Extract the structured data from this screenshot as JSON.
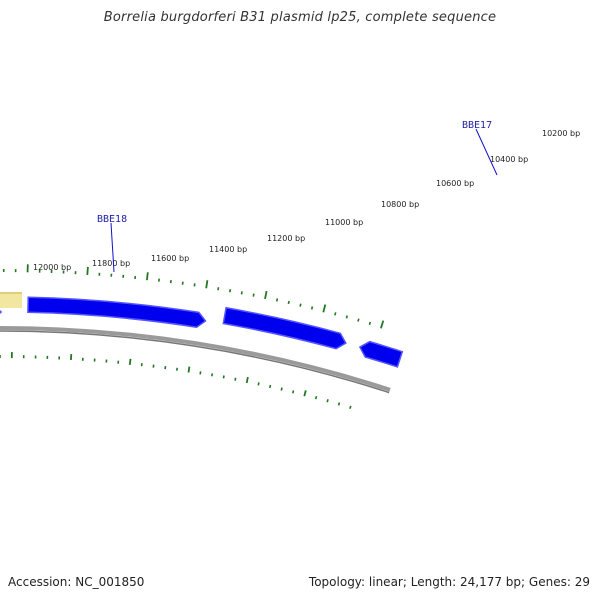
{
  "title": "Borrelia burgdorferi B31 plasmid lp25, complete sequence",
  "footer": {
    "accession_label": "Accession:",
    "accession": "NC_001850",
    "topology_label": "Topology:",
    "topology": "linear",
    "length_label": "Length:",
    "length": "24,177 bp",
    "genes_label": "Genes:",
    "genes": "29"
  },
  "tick_labels": [
    "10200 bp",
    "10400 bp",
    "10600 bp",
    "10800 bp",
    "11000 bp",
    "11200 bp",
    "11400 bp",
    "11600 bp",
    "11800 bp",
    "12000 bp"
  ],
  "gene_labels": [
    "BBE17",
    "BBE18"
  ],
  "colors": {
    "gene_fill": "#0000ee",
    "gene_edge": "#5555ff",
    "backbone": "#777777",
    "tick": "#227722",
    "label_line": "#1111cc",
    "highlight": "#f2e7a1"
  }
}
